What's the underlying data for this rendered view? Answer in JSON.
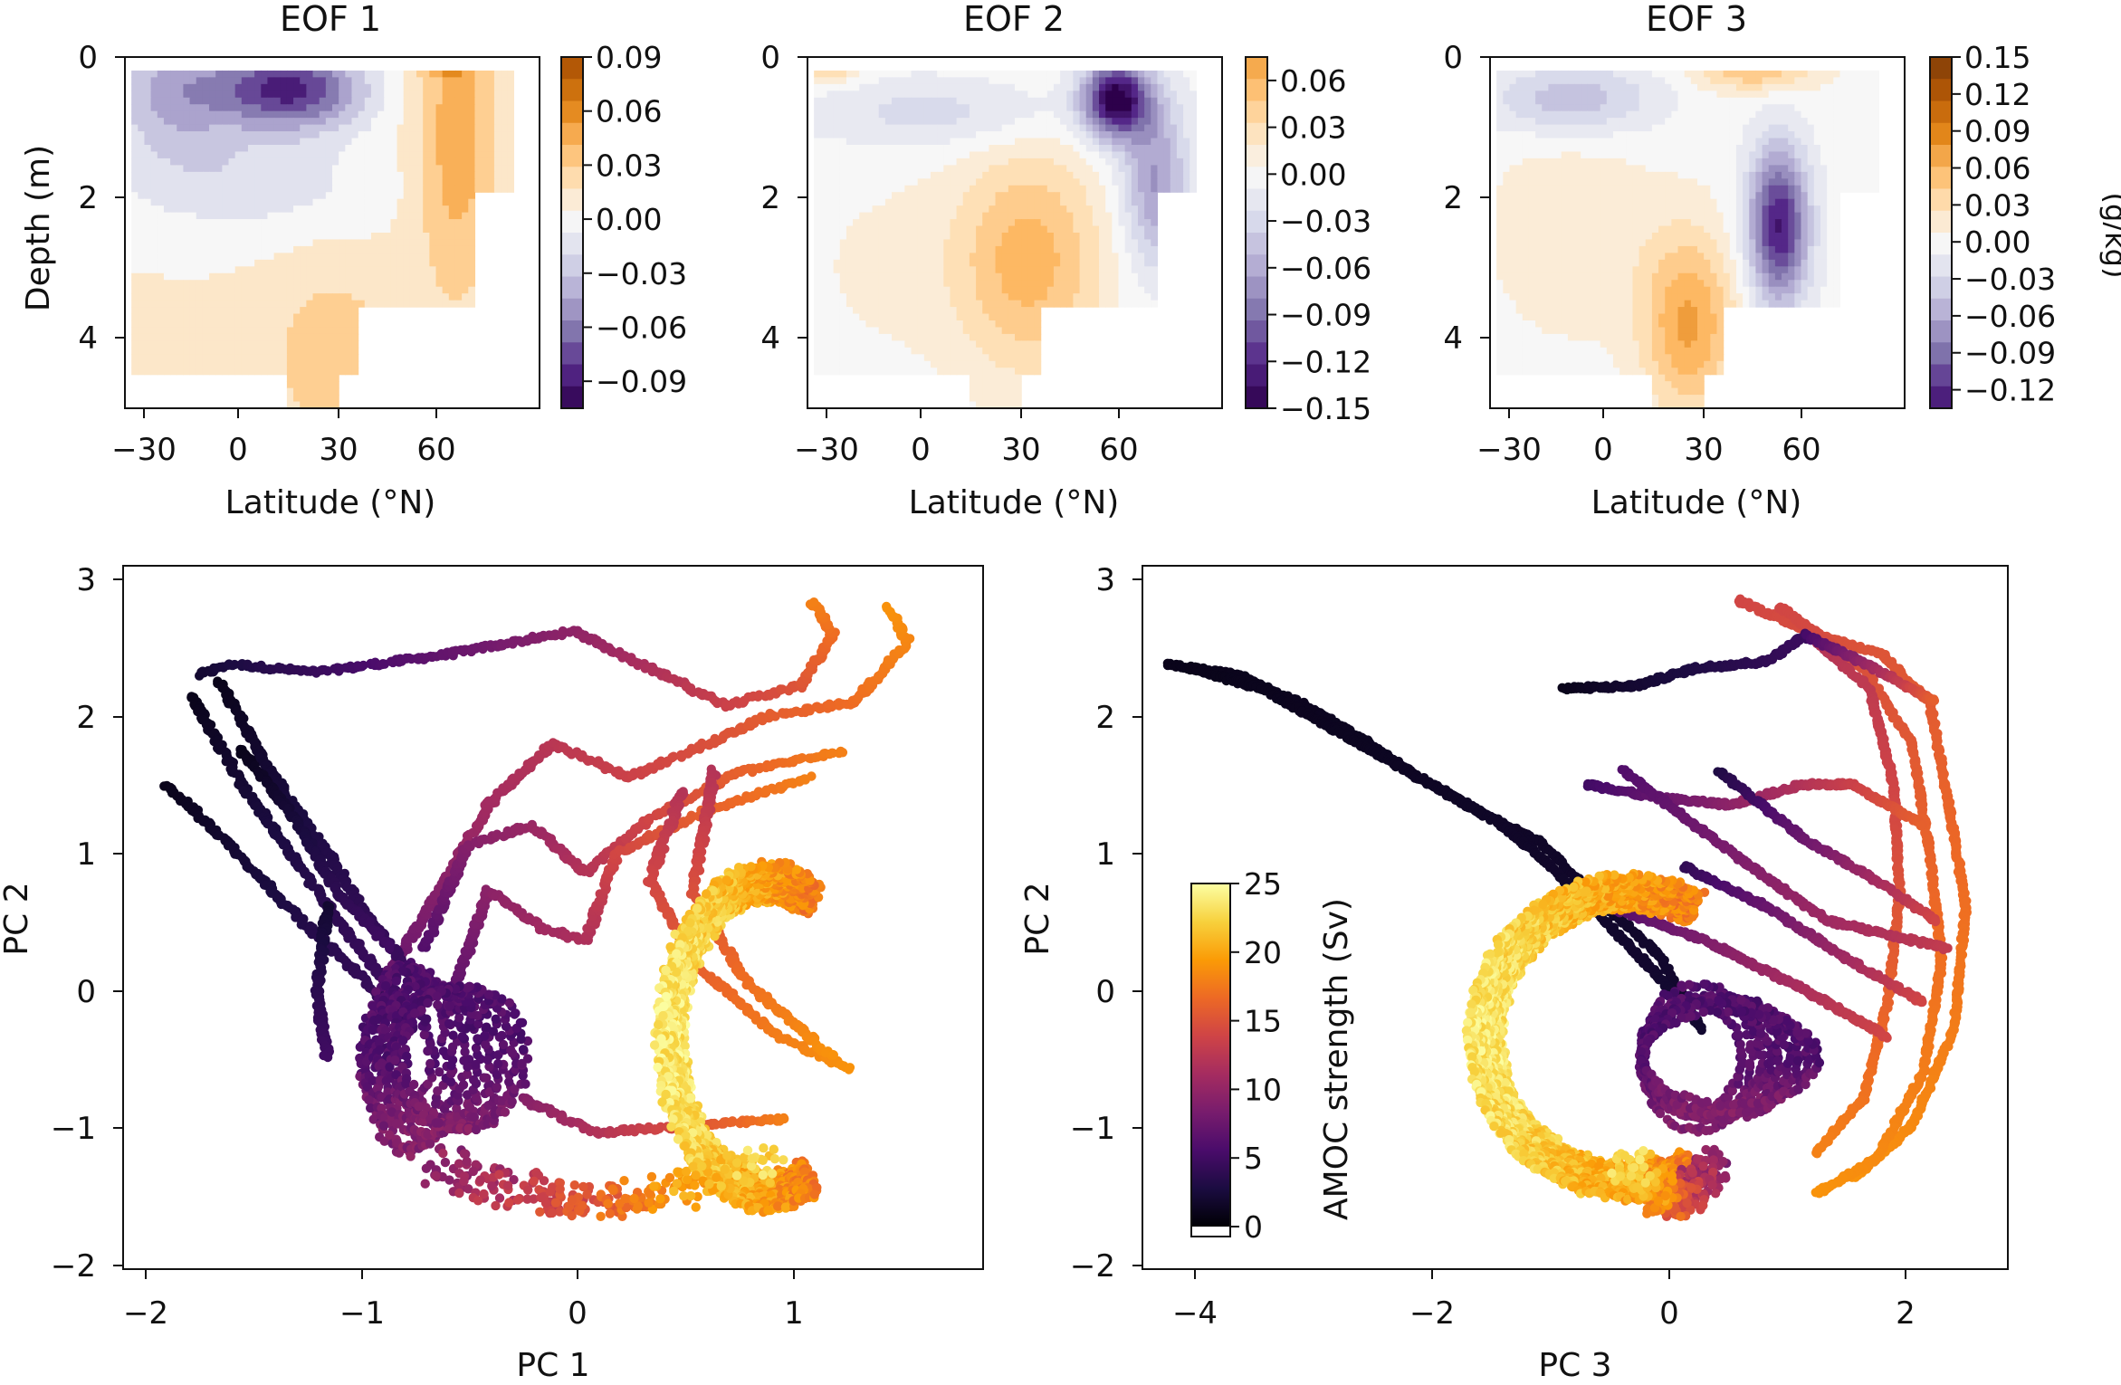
{
  "figure": {
    "colorbar_units": "(g/kg)"
  },
  "colors": {
    "purple_orange": [
      "#2d004b",
      "#542788",
      "#8073ac",
      "#b2abd2",
      "#d8daeb",
      "#f7f7f7",
      "#fee0b6",
      "#fdb863",
      "#e08214",
      "#b35806",
      "#7f3b08"
    ],
    "inferno": [
      "#000004",
      "#1b0c41",
      "#4a0c6b",
      "#781c6d",
      "#a52c60",
      "#cf4446",
      "#ed6925",
      "#fb9b06",
      "#f7d13d",
      "#fcffa4"
    ]
  },
  "chart_data": [
    {
      "id": "eof1",
      "type": "heatmap",
      "title": "EOF 1",
      "xlabel": "Latitude (°N)",
      "ylabel": "Depth (m)",
      "xlim": [
        -35,
        90
      ],
      "ylim": [
        5,
        0
      ],
      "xticks": [
        "−30",
        "0",
        "30",
        "60"
      ],
      "xtick_values": [
        -30,
        0,
        30,
        60
      ],
      "yticks": [
        "0",
        "2",
        "4"
      ],
      "ytick_values": [
        0,
        2,
        4
      ],
      "colorbar": {
        "ticks": [
          "0.09",
          "0.06",
          "0.03",
          "0.00",
          "−0.03",
          "−0.06",
          "−0.09"
        ],
        "tick_values": [
          0.09,
          0.06,
          0.03,
          0,
          -0.03,
          -0.06,
          -0.09
        ],
        "range": [
          -0.105,
          0.09
        ]
      }
    },
    {
      "id": "eof2",
      "type": "heatmap",
      "title": "EOF 2",
      "xlabel": "Latitude (°N)",
      "ylabel": "",
      "xlim": [
        -35,
        90
      ],
      "ylim": [
        5,
        0
      ],
      "xticks": [
        "−30",
        "0",
        "30",
        "60"
      ],
      "xtick_values": [
        -30,
        0,
        30,
        60
      ],
      "yticks": [
        "0",
        "2",
        "4"
      ],
      "ytick_values": [
        0,
        2,
        4
      ],
      "colorbar": {
        "ticks": [
          "0.06",
          "0.03",
          "0.00",
          "−0.03",
          "−0.06",
          "−0.09",
          "−0.12",
          "−0.15"
        ],
        "tick_values": [
          0.06,
          0.03,
          0,
          -0.03,
          -0.06,
          -0.09,
          -0.12,
          -0.15
        ],
        "range": [
          -0.15,
          0.075
        ]
      }
    },
    {
      "id": "eof3",
      "type": "heatmap",
      "title": "EOF 3",
      "xlabel": "Latitude (°N)",
      "ylabel": "",
      "xlim": [
        -35,
        90
      ],
      "ylim": [
        5,
        0
      ],
      "xticks": [
        "−30",
        "0",
        "30",
        "60"
      ],
      "xtick_values": [
        -30,
        0,
        30,
        60
      ],
      "yticks": [
        "0",
        "2",
        "4"
      ],
      "ytick_values": [
        0,
        2,
        4
      ],
      "colorbar": {
        "ticks": [
          "0.15",
          "0.12",
          "0.09",
          "0.06",
          "0.03",
          "0.00",
          "−0.03",
          "−0.06",
          "−0.09",
          "−0.12"
        ],
        "tick_values": [
          0.15,
          0.12,
          0.09,
          0.06,
          0.03,
          0,
          -0.03,
          -0.06,
          -0.09,
          -0.12
        ],
        "range": [
          -0.135,
          0.15
        ]
      }
    },
    {
      "id": "pc12",
      "type": "scatter",
      "xlabel": "PC 1",
      "ylabel": "PC 2",
      "xlim": [
        -2.1,
        1.9
      ],
      "ylim": [
        -2.05,
        3.1
      ],
      "xticks": [
        "−2",
        "−1",
        "0",
        "1"
      ],
      "xtick_values": [
        -2,
        -1,
        0,
        1
      ],
      "yticks": [
        "3",
        "2",
        "1",
        "0",
        "−1",
        "−2"
      ],
      "ytick_values": [
        3,
        2,
        1,
        0,
        -1,
        -2
      ],
      "color_variable": "AMOC strength (Sv)",
      "color_range": [
        0,
        25
      ],
      "main_cycle": {
        "center": [
          0.9,
          -0.35
        ],
        "radius_x": 0.82,
        "radius_y": 1.45,
        "amoc_high": 22,
        "amoc_low": 14,
        "loops": 14
      },
      "weak_cluster": {
        "center": [
          -0.65,
          -0.5
        ],
        "radius_x": 0.33,
        "radius_y": 0.7,
        "amoc": 5,
        "loops": 9
      },
      "trajectories": [
        {
          "amoc": [
            2,
            18
          ],
          "points": [
            [
              -1.75,
              2.3
            ],
            [
              -1.6,
              2.38
            ],
            [
              -1.2,
              2.32
            ],
            [
              -0.6,
              2.45
            ],
            [
              0.0,
              2.62
            ],
            [
              0.35,
              2.35
            ],
            [
              0.7,
              2.08
            ],
            [
              1.05,
              2.22
            ],
            [
              1.2,
              2.6
            ],
            [
              1.1,
              2.85
            ]
          ]
        },
        {
          "amoc": [
            7,
            19
          ],
          "points": [
            [
              -0.9,
              0.0
            ],
            [
              -0.6,
              0.8
            ],
            [
              -0.4,
              1.35
            ],
            [
              -0.1,
              1.8
            ],
            [
              0.25,
              1.55
            ],
            [
              0.55,
              1.75
            ],
            [
              0.9,
              2.0
            ],
            [
              1.3,
              2.1
            ],
            [
              1.55,
              2.55
            ],
            [
              1.45,
              2.8
            ]
          ]
        },
        {
          "amoc": [
            6,
            18
          ],
          "points": [
            [
              -0.7,
              0.3
            ],
            [
              -0.5,
              1.05
            ],
            [
              -0.2,
              1.2
            ],
            [
              0.05,
              0.85
            ],
            [
              0.35,
              1.25
            ],
            [
              0.75,
              1.58
            ],
            [
              1.25,
              1.75
            ]
          ]
        },
        {
          "amoc": [
            6,
            18
          ],
          "points": [
            [
              -0.6,
              -0.2
            ],
            [
              -0.4,
              0.72
            ],
            [
              -0.15,
              0.45
            ],
            [
              0.05,
              0.35
            ],
            [
              0.2,
              1.0
            ],
            [
              0.6,
              1.3
            ],
            [
              1.1,
              1.55
            ]
          ]
        },
        {
          "amoc": [
            12,
            19
          ],
          "points": [
            [
              0.5,
              1.45
            ],
            [
              0.35,
              0.8
            ],
            [
              0.55,
              0.2
            ],
            [
              0.95,
              -0.35
            ],
            [
              1.3,
              -0.6
            ]
          ]
        },
        {
          "amoc": [
            12,
            19
          ],
          "points": [
            [
              0.65,
              1.6
            ],
            [
              0.55,
              0.7
            ],
            [
              0.8,
              0.05
            ],
            [
              1.2,
              -0.5
            ]
          ]
        },
        {
          "amoc": [
            9,
            18
          ],
          "points": [
            [
              -0.25,
              -0.8
            ],
            [
              0.1,
              -1.05
            ],
            [
              0.55,
              -1.0
            ],
            [
              1.0,
              -0.95
            ]
          ]
        },
        {
          "amoc": [
            1,
            5
          ],
          "points": [
            [
              -1.9,
              1.5
            ],
            [
              -1.6,
              1.05
            ],
            [
              -1.3,
              0.55
            ],
            [
              -1.0,
              0.1
            ],
            [
              -0.75,
              -0.3
            ]
          ]
        },
        {
          "amoc": [
            1,
            5
          ],
          "points": [
            [
              -1.78,
              2.15
            ],
            [
              -1.55,
              1.5
            ],
            [
              -1.3,
              0.95
            ],
            [
              -1.05,
              0.4
            ],
            [
              -0.8,
              -0.1
            ]
          ]
        },
        {
          "amoc": [
            1,
            5
          ],
          "points": [
            [
              -1.65,
              2.25
            ],
            [
              -1.42,
              1.6
            ],
            [
              -1.15,
              1.0
            ],
            [
              -0.95,
              0.5
            ],
            [
              -0.7,
              0.0
            ]
          ]
        },
        {
          "amoc": [
            1,
            5
          ],
          "points": [
            [
              -1.55,
              1.75
            ],
            [
              -1.3,
              1.25
            ],
            [
              -1.1,
              0.7
            ],
            [
              -0.85,
              0.3
            ]
          ]
        },
        {
          "amoc": [
            2,
            5
          ],
          "points": [
            [
              -1.15,
              0.6
            ],
            [
              -1.2,
              -0.05
            ],
            [
              -1.15,
              -0.5
            ]
          ]
        }
      ]
    },
    {
      "id": "pc32",
      "type": "scatter",
      "xlabel": "PC 3",
      "ylabel": "PC 2",
      "xlim": [
        -4.3,
        2.9
      ],
      "ylim": [
        -2.05,
        3.1
      ],
      "xticks": [
        "−4",
        "−2",
        "0",
        "2"
      ],
      "xtick_values": [
        -4,
        -2,
        0,
        2
      ],
      "yticks": [
        "3",
        "2",
        "1",
        "0",
        "−1",
        "−2"
      ],
      "ytick_values": [
        3,
        2,
        1,
        0,
        -1,
        -2
      ],
      "color_variable": "AMOC strength (Sv)",
      "color_range": [
        0,
        25
      ],
      "main_cycle": {
        "center": [
          -0.25,
          -0.35
        ],
        "radius_x": 1.3,
        "radius_y": 1.35,
        "amoc_high": 22,
        "amoc_low": 14,
        "loops": 14
      },
      "weak_cluster": {
        "center": [
          0.45,
          -0.5
        ],
        "radius_x": 0.85,
        "radius_y": 0.55,
        "amoc": 5,
        "loops": 9
      },
      "trajectories": [
        {
          "amoc": [
            1,
            2
          ],
          "points": [
            [
              -4.1,
              2.38
            ],
            [
              -3.5,
              2.3
            ],
            [
              -3.0,
              2.1
            ],
            [
              -2.5,
              1.85
            ],
            [
              -2.0,
              1.55
            ],
            [
              -1.5,
              1.3
            ],
            [
              -1.0,
              1.08
            ],
            [
              -0.5,
              0.65
            ],
            [
              0.0,
              0.25
            ],
            [
              0.35,
              -0.3
            ]
          ]
        },
        {
          "amoc": [
            1,
            2
          ],
          "points": [
            [
              -3.9,
              2.35
            ],
            [
              -3.3,
              2.2
            ],
            [
              -2.8,
              1.95
            ],
            [
              -2.3,
              1.7
            ],
            [
              -1.8,
              1.45
            ],
            [
              -1.3,
              1.2
            ],
            [
              -0.9,
              0.9
            ],
            [
              -0.4,
              0.45
            ],
            [
              0.1,
              0.0
            ]
          ]
        },
        {
          "amoc": [
            1,
            5
          ],
          "points": [
            [
              -0.8,
              2.2
            ],
            [
              -0.2,
              2.22
            ],
            [
              0.3,
              2.35
            ],
            [
              0.9,
              2.4
            ],
            [
              1.2,
              2.58
            ],
            [
              1.4,
              2.55
            ]
          ]
        },
        {
          "amoc": [
            14,
            19
          ],
          "points": [
            [
              0.65,
              2.85
            ],
            [
              1.3,
              2.6
            ],
            [
              1.85,
              2.45
            ],
            [
              2.25,
              2.1
            ],
            [
              2.4,
              1.4
            ],
            [
              2.55,
              0.6
            ],
            [
              2.45,
              -0.3
            ],
            [
              2.1,
              -1.0
            ],
            [
              1.6,
              -1.4
            ]
          ]
        },
        {
          "amoc": [
            14,
            19
          ],
          "points": [
            [
              1.0,
              2.8
            ],
            [
              1.7,
              2.35
            ],
            [
              2.1,
              1.8
            ],
            [
              2.25,
              1.0
            ],
            [
              2.35,
              0.2
            ],
            [
              2.2,
              -0.6
            ],
            [
              1.8,
              -1.25
            ],
            [
              1.3,
              -1.5
            ]
          ]
        },
        {
          "amoc": [
            12,
            18
          ],
          "points": [
            [
              1.3,
              2.55
            ],
            [
              1.75,
              2.2
            ],
            [
              1.95,
              1.5
            ],
            [
              2.0,
              0.7
            ],
            [
              1.9,
              -0.1
            ],
            [
              1.7,
              -0.8
            ],
            [
              1.3,
              -1.2
            ]
          ]
        },
        {
          "amoc": [
            5,
            16
          ],
          "points": [
            [
              1.2,
              2.6
            ],
            [
              1.9,
              2.3
            ],
            [
              2.3,
              2.1
            ]
          ]
        },
        {
          "amoc": [
            5,
            16
          ],
          "points": [
            [
              -0.6,
              1.5
            ],
            [
              0.0,
              1.4
            ],
            [
              0.6,
              1.35
            ],
            [
              1.2,
              1.5
            ],
            [
              1.6,
              1.5
            ],
            [
              2.2,
              1.2
            ]
          ]
        },
        {
          "amoc": [
            3,
            14
          ],
          "points": [
            [
              0.5,
              1.6
            ],
            [
              1.2,
              1.1
            ],
            [
              1.8,
              0.8
            ],
            [
              2.3,
              0.5
            ]
          ]
        },
        {
          "amoc": [
            4,
            14
          ],
          "points": [
            [
              0.2,
              0.9
            ],
            [
              0.9,
              0.6
            ],
            [
              1.6,
              0.2
            ],
            [
              2.2,
              -0.1
            ]
          ]
        },
        {
          "amoc": [
            6,
            14
          ],
          "points": [
            [
              -0.4,
              0.6
            ],
            [
              0.4,
              0.35
            ],
            [
              1.2,
              0.0
            ],
            [
              1.9,
              -0.35
            ]
          ]
        },
        {
          "amoc": [
            6,
            13
          ],
          "points": [
            [
              -0.3,
              1.6
            ],
            [
              0.6,
              1.0
            ],
            [
              1.4,
              0.5
            ],
            [
              2.4,
              0.3
            ]
          ]
        }
      ]
    }
  ]
}
